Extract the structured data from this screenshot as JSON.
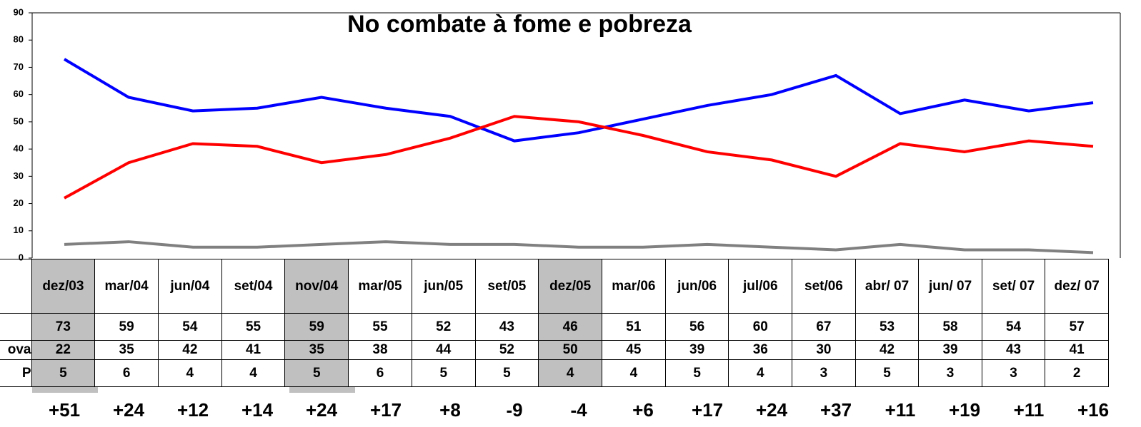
{
  "chart_data": {
    "type": "line",
    "title": "No combate  à fome e pobreza",
    "categories": [
      "dez/03",
      "mar/04",
      "jun/04",
      "set/04",
      "nov/04",
      "mar/05",
      "jun/05",
      "set/05",
      "dez/05",
      "mar/06",
      "jun/06",
      "jul/06",
      "set/06",
      "abr/ 07",
      "jun/ 07",
      "set/ 07",
      "dez/ 07"
    ],
    "series": [
      {
        "color": "#0000ff",
        "values": [
          73,
          59,
          54,
          55,
          59,
          55,
          52,
          43,
          46,
          51,
          56,
          60,
          67,
          53,
          58,
          54,
          57
        ]
      },
      {
        "name": "ova",
        "color": "#ff0000",
        "values": [
          22,
          35,
          42,
          41,
          35,
          38,
          44,
          52,
          50,
          45,
          39,
          36,
          30,
          42,
          39,
          43,
          41
        ]
      },
      {
        "name": "P",
        "color": "#808080",
        "values": [
          5,
          6,
          4,
          4,
          5,
          6,
          5,
          5,
          4,
          4,
          5,
          4,
          3,
          5,
          3,
          3,
          2
        ]
      }
    ],
    "balance": {
      "label": ")",
      "values": [
        51,
        24,
        12,
        14,
        24,
        17,
        8,
        -9,
        -4,
        6,
        17,
        24,
        37,
        11,
        19,
        11,
        16
      ],
      "value_labels": [
        "+51",
        "+24",
        "+12",
        "+14",
        "+24",
        "+17",
        "+8",
        "-9",
        "-4",
        "+6",
        "+17",
        "+24",
        "+37",
        "+11",
        "+19",
        "+11",
        "+16"
      ]
    },
    "ylim": [
      0,
      90
    ],
    "yticks": [
      0,
      10,
      20,
      30,
      40,
      50,
      60,
      70,
      80,
      90
    ],
    "highlight_columns": [
      0,
      4,
      8
    ],
    "highlight_color": "#c0c0c0"
  }
}
